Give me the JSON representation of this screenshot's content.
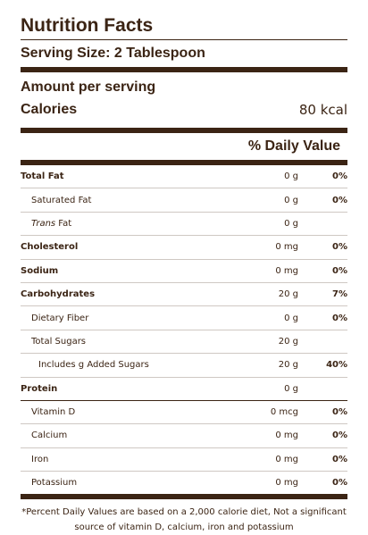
{
  "title": "Nutrition Facts",
  "serving_size": "Serving Size: 2 Tablespoon",
  "amount_per_serving": "Amount per serving",
  "calories": {
    "label": "Calories",
    "value": "80 kcal"
  },
  "daily_value_header": "% Daily Value",
  "rows": [
    {
      "name": "Total Fat",
      "amount": "0 g",
      "pct": "0%"
    },
    {
      "name": "Saturated Fat",
      "amount": "0 g",
      "pct": "0%"
    },
    {
      "name_italic": "Trans",
      "name": " Fat",
      "amount": "0 g",
      "pct": ""
    },
    {
      "name": "Cholesterol",
      "amount": "0 mg",
      "pct": "0%"
    },
    {
      "name": "Sodium",
      "amount": "0 mg",
      "pct": "0%"
    },
    {
      "name": "Carbohydrates",
      "amount": "20 g",
      "pct": "7%"
    },
    {
      "name": "Dietary Fiber",
      "amount": "0 g",
      "pct": "0%"
    },
    {
      "name": "Total Sugars",
      "amount": "20 g",
      "pct": ""
    },
    {
      "name": "Includes g Added Sugars",
      "amount": "20 g",
      "pct": "40%"
    },
    {
      "name": "Protein",
      "amount": "0 g",
      "pct": ""
    },
    {
      "name": "Vitamin D",
      "amount": "0 mcg",
      "pct": "0%"
    },
    {
      "name": "Calcium",
      "amount": "0 mg",
      "pct": "0%"
    },
    {
      "name": "Iron",
      "amount": "0 mg",
      "pct": "0%"
    },
    {
      "name": "Potassium",
      "amount": "0 mg",
      "pct": "0%"
    }
  ],
  "footnote": "*Percent Daily Values are based on a 2,000 calorie diet, Not a significant source of vitamin D, calcium, iron and potassium",
  "colors": {
    "text": "#3b2414",
    "row_divider": "#cfc8c3"
  }
}
